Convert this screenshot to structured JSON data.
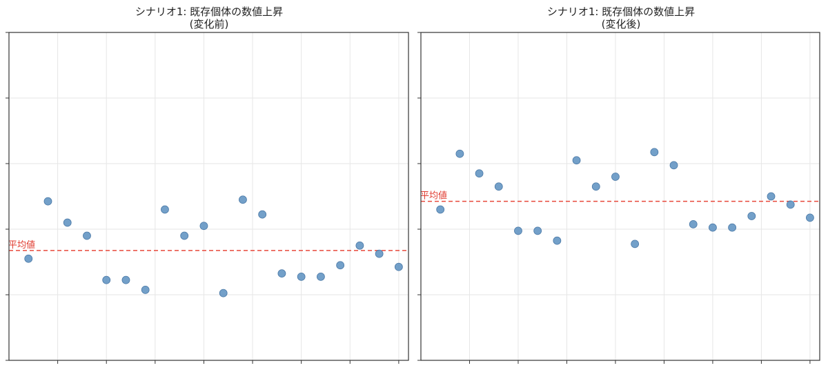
{
  "colors": {
    "point": "#5b8fc0",
    "point_edge": "#4a78a6",
    "mean_line": "#e8473a",
    "grid": "#e6e6e6",
    "axes": "#333333"
  },
  "chart_data": [
    {
      "type": "scatter",
      "title": "シナリオ1: 既存個体の数値上昇",
      "subtitle": "(変化前)",
      "xlabel": "",
      "ylabel": "",
      "xlim": [
        0,
        20.5
      ],
      "ylim": [
        0,
        100
      ],
      "x_ticks": [
        2.5,
        5,
        7.5,
        10,
        12.5,
        15,
        17.5,
        20
      ],
      "y_ticks": [
        0,
        20,
        40,
        60,
        80,
        100
      ],
      "grid": true,
      "mean": 33.5,
      "mean_label": "平均値",
      "x": [
        1,
        2,
        3,
        4,
        5,
        6,
        7,
        8,
        9,
        10,
        11,
        12,
        13,
        14,
        15,
        16,
        17,
        18,
        19,
        20
      ],
      "y": [
        31,
        48.5,
        42,
        38,
        24.5,
        24.5,
        21.5,
        46,
        38,
        41,
        20.5,
        49,
        44.5,
        26.5,
        25.5,
        25.5,
        29,
        35,
        32.5,
        28.5
      ]
    },
    {
      "type": "scatter",
      "title": "シナリオ1: 既存個体の数値上昇",
      "subtitle": "(変化後)",
      "xlabel": "",
      "ylabel": "",
      "xlim": [
        0,
        20.5
      ],
      "ylim": [
        0,
        100
      ],
      "x_ticks": [
        2.5,
        5,
        7.5,
        10,
        12.5,
        15,
        17.5,
        20
      ],
      "y_ticks": [
        0,
        20,
        40,
        60,
        80,
        100
      ],
      "grid": true,
      "mean": 48.5,
      "mean_label": "平均値",
      "x": [
        1,
        2,
        3,
        4,
        5,
        6,
        7,
        8,
        9,
        10,
        11,
        12,
        13,
        14,
        15,
        16,
        17,
        18,
        19,
        20
      ],
      "y": [
        46,
        63,
        57,
        53,
        39.5,
        39.5,
        36.5,
        61,
        53,
        56,
        35.5,
        63.5,
        59.5,
        41.5,
        40.5,
        40.5,
        44,
        50,
        47.5,
        43.5
      ]
    }
  ]
}
